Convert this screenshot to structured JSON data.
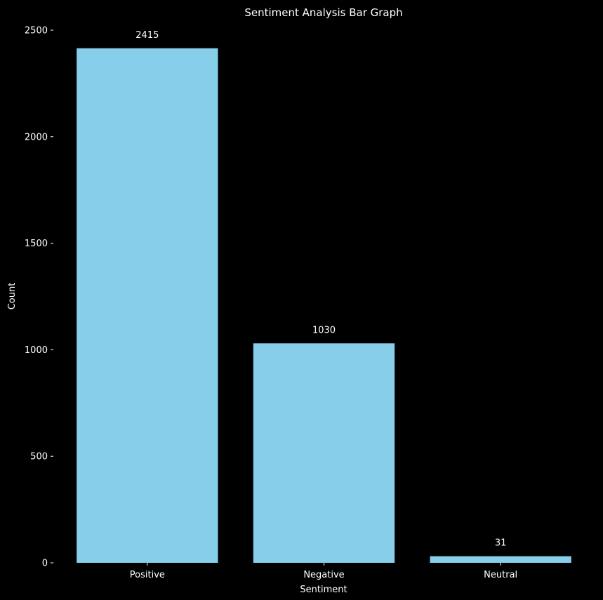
{
  "chart_data": {
    "type": "bar",
    "title": "Sentiment Analysis Bar Graph",
    "xlabel": "Sentiment",
    "ylabel": "Count",
    "categories": [
      "Positive",
      "Negative",
      "Neutral"
    ],
    "values": [
      2415,
      1030,
      31
    ],
    "data_labels": [
      "2415",
      "1030",
      "31"
    ],
    "yticks": [
      0,
      500,
      1000,
      1500,
      2000,
      2500
    ],
    "ytick_labels": [
      "0",
      "500",
      "1000",
      "1500",
      "2000",
      "2500"
    ],
    "ylim": [
      0,
      2500
    ],
    "grid": false,
    "bar_color": "#87ceeb",
    "background_color": "#000000",
    "text_color": "#ffffff"
  }
}
